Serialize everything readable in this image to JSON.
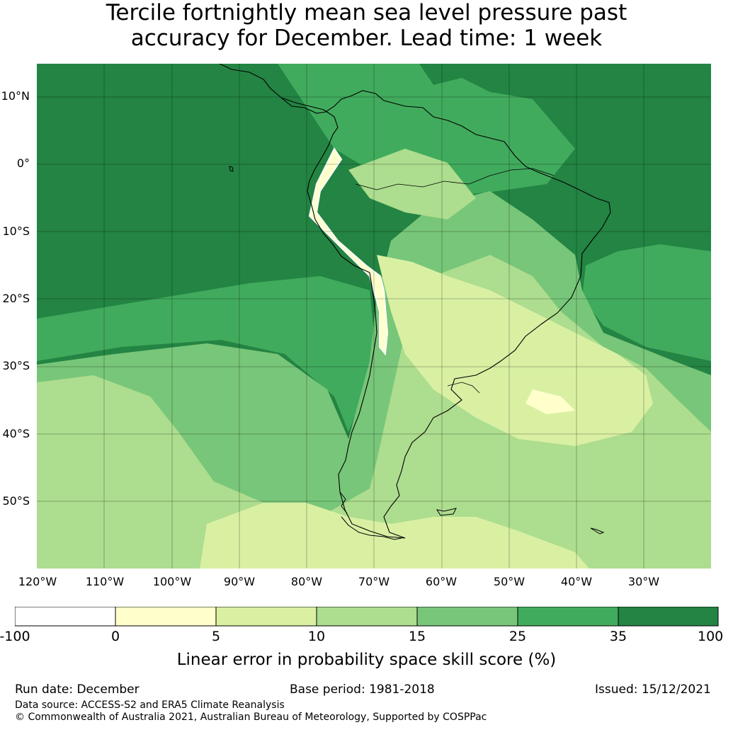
{
  "title": {
    "line1": "Tercile fortnightly mean sea level pressure past",
    "line2": "accuracy for December. Lead time: 1 week"
  },
  "map": {
    "lat_labels": [
      "10°N",
      "0°",
      "10°S",
      "20°S",
      "30°S",
      "40°S",
      "50°S"
    ],
    "lon_labels": [
      "120°W",
      "110°W",
      "100°W",
      "90°W",
      "80°W",
      "70°W",
      "60°W",
      "50°W",
      "40°W",
      "30°W"
    ]
  },
  "colorbar": {
    "ticks": [
      "-100",
      "0",
      "5",
      "10",
      "15",
      "25",
      "35",
      "100"
    ],
    "colors": [
      "#ffffff",
      "#ffffcc",
      "#d9f0a3",
      "#addd8e",
      "#78c679",
      "#41ab5d",
      "#238443"
    ],
    "label": "Linear error in probability space skill score (%)"
  },
  "footer": {
    "run_date": "Run date: December",
    "base_period": "Base period: 1981-2018",
    "issued": "Issued: 15/12/2021",
    "data_source": "Data source: ACCESS-S2 and ERA5 Climate Reanalysis",
    "copyright": "© Commonwealth of Australia 2021, Australian Bureau of Meteorology, Supported by COSPPac"
  }
}
